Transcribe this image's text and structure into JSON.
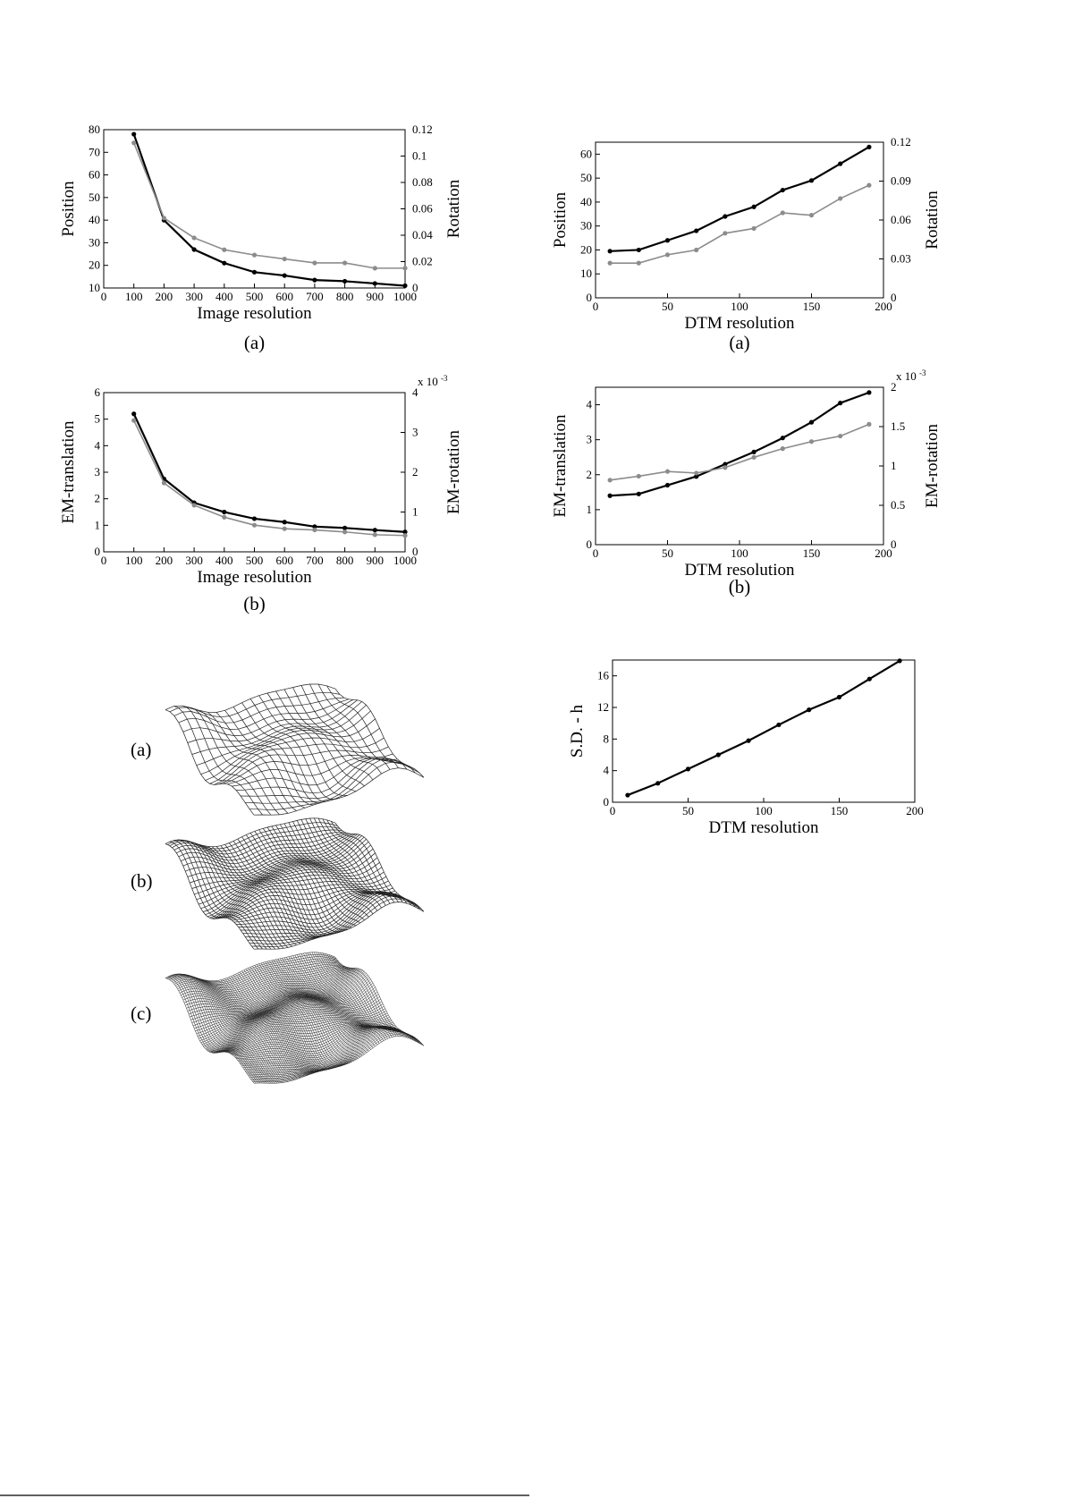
{
  "chart_data": [
    {
      "type": "line",
      "xlabel": "Image resolution",
      "ylabel": "Position",
      "y2label": "Rotation",
      "caption": "(a)",
      "x": [
        100,
        200,
        300,
        400,
        500,
        600,
        700,
        800,
        900,
        1000
      ],
      "xlim": [
        0,
        1000
      ],
      "xticks": [
        0,
        100,
        200,
        300,
        400,
        500,
        600,
        700,
        800,
        900,
        1000
      ],
      "ylim": [
        10,
        80
      ],
      "yticks": [
        10,
        20,
        30,
        40,
        50,
        60,
        70,
        80
      ],
      "y2lim": [
        0,
        0.12
      ],
      "y2ticks": [
        0,
        0.02,
        0.04,
        0.06,
        0.08,
        0.1,
        0.12
      ],
      "series": [
        {
          "color": "#000000",
          "values": [
            78,
            40,
            27,
            21,
            17,
            15.5,
            13.5,
            13,
            12,
            11
          ]
        },
        {
          "color": "#8c8c8c",
          "axis": "y2",
          "values": [
            0.11,
            0.053,
            0.038,
            0.029,
            0.025,
            0.022,
            0.019,
            0.019,
            0.015,
            0.015
          ]
        }
      ]
    },
    {
      "type": "line",
      "xlabel": "Image resolution",
      "ylabel": "EM-translation",
      "y2label": "EM-rotation",
      "caption": "(b)",
      "y2_multiplier": "x 10",
      "y2_exponent": "-3",
      "x": [
        100,
        200,
        300,
        400,
        500,
        600,
        700,
        800,
        900,
        1000
      ],
      "xlim": [
        0,
        1000
      ],
      "xticks": [
        0,
        100,
        200,
        300,
        400,
        500,
        600,
        700,
        800,
        900,
        1000
      ],
      "ylim": [
        0,
        6
      ],
      "yticks": [
        0,
        1,
        2,
        3,
        4,
        5,
        6
      ],
      "y2lim": [
        0,
        0.004
      ],
      "y2ticks": [
        0,
        {
          "value": 0.001,
          "label": "1"
        },
        {
          "value": 0.002,
          "label": "2"
        },
        {
          "value": 0.003,
          "label": "3"
        },
        {
          "value": 0.004,
          "label": "4"
        }
      ],
      "series": [
        {
          "color": "#000000",
          "values": [
            5.2,
            2.75,
            1.85,
            1.5,
            1.25,
            1.12,
            0.95,
            0.9,
            0.82,
            0.75
          ]
        },
        {
          "color": "#8c8c8c",
          "axis": "y2",
          "values": [
            0.0033,
            0.00173,
            0.00117,
            0.00087,
            0.00067,
            0.00058,
            0.00055,
            0.0005,
            0.00043,
            0.00041
          ]
        }
      ]
    },
    {
      "type": "line",
      "xlabel": "DTM resolution",
      "ylabel": "Position",
      "y2label": "Rotation",
      "caption": "(a)",
      "x": [
        10,
        30,
        50,
        70,
        90,
        110,
        130,
        150,
        170,
        190
      ],
      "xlim": [
        0,
        200
      ],
      "xticks": [
        0,
        50,
        100,
        150,
        200
      ],
      "ylim": [
        0,
        65
      ],
      "yticks": [
        0,
        10,
        20,
        30,
        40,
        50,
        60
      ],
      "y2lim": [
        0,
        0.12
      ],
      "y2ticks": [
        0,
        0.03,
        0.06,
        0.09,
        0.12
      ],
      "series": [
        {
          "color": "#000000",
          "values": [
            19.5,
            20,
            24,
            28,
            34,
            38,
            45,
            49,
            56,
            63
          ]
        },
        {
          "color": "#8c8c8c",
          "axis": "y2",
          "values": [
            0.0268,
            0.0268,
            0.0332,
            0.0369,
            0.0498,
            0.0535,
            0.0655,
            0.0637,
            0.0766,
            0.0868
          ]
        }
      ]
    },
    {
      "type": "line",
      "xlabel": "DTM resolution",
      "ylabel": "EM-translation",
      "y2label": "EM-rotation",
      "caption": "(b)",
      "y2_multiplier": "x 10",
      "y2_exponent": "-3",
      "x": [
        10,
        30,
        50,
        70,
        90,
        110,
        130,
        150,
        170,
        190
      ],
      "xlim": [
        0,
        200
      ],
      "xticks": [
        0,
        50,
        100,
        150,
        200
      ],
      "ylim": [
        0,
        4.5
      ],
      "yticks": [
        0,
        1,
        2,
        3,
        4
      ],
      "y2lim": [
        0,
        0.002
      ],
      "y2ticks": [
        0,
        {
          "value": 0.0005,
          "label": "0.5"
        },
        {
          "value": 0.001,
          "label": "1"
        },
        {
          "value": 0.0015,
          "label": "1.5"
        },
        {
          "value": 0.002,
          "label": "2"
        }
      ],
      "series": [
        {
          "color": "#000000",
          "values": [
            1.4,
            1.45,
            1.7,
            1.95,
            2.3,
            2.65,
            3.05,
            3.5,
            4.05,
            4.35
          ]
        },
        {
          "color": "#8c8c8c",
          "axis": "y2",
          "values": [
            0.00082,
            0.00087,
            0.00093,
            0.00091,
            0.00098,
            0.00111,
            0.00122,
            0.00131,
            0.00138,
            0.00153
          ]
        }
      ]
    },
    {
      "type": "line",
      "xlabel": "DTM resolution",
      "ylabel": "S.D. - h",
      "x": [
        10,
        30,
        50,
        70,
        90,
        110,
        130,
        150,
        170,
        190
      ],
      "xlim": [
        0,
        200
      ],
      "xticks": [
        0,
        50,
        100,
        150,
        200
      ],
      "ylim": [
        0,
        18
      ],
      "yticks": [
        0,
        4,
        8,
        12,
        16
      ],
      "series": [
        {
          "color": "#000000",
          "values": [
            0.9,
            2.4,
            4.2,
            6.0,
            7.8,
            9.8,
            11.7,
            13.3,
            15.6,
            17.9
          ]
        }
      ]
    }
  ],
  "mesh_figure": {
    "labels": [
      "(a)",
      "(b)",
      "(c)"
    ]
  }
}
